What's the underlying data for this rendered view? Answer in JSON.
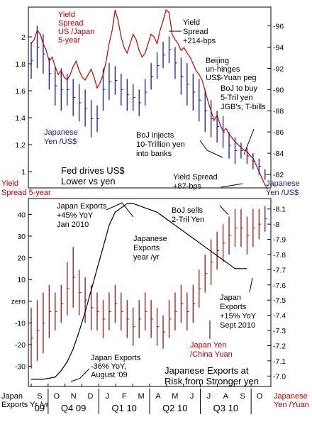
{
  "colors": {
    "spread": "#c00000",
    "yen_bars": "#1a1a8c",
    "yuan_bars": "#8b1a1a",
    "exports": "#000000"
  },
  "top": {
    "left_axis_title_1": "Yield",
    "left_axis_title_2": "Spread 5-year",
    "right_axis_title_1": "Japanese",
    "right_axis_title_2": "Yen /US$",
    "annotations": {
      "yield_spread_label": [
        "Yield",
        "Spread",
        "US /Japan",
        "5-year"
      ],
      "spread_214": [
        "Yield",
        "Spread",
        "+214-bps"
      ],
      "beijing": [
        "Beijing",
        "un-hinges",
        "US$-Yuan peg"
      ],
      "boj_buy": [
        "BoJ to buy",
        "5-Tril yen",
        "JGB's, T-bills"
      ],
      "japanese_yen": [
        "Japanese",
        "Yen /US$"
      ],
      "boj_injects": [
        "BoJ injects",
        "10-Trillion yen",
        "into banks"
      ],
      "fed_drives": [
        "Fed drives US$",
        "Lower vs yen"
      ],
      "spread_87": [
        "Yield Spread",
        "+87-bps"
      ]
    }
  },
  "bottom": {
    "left_axis_title_1": "Japan",
    "left_axis_title_2": "Exports Yr /yr",
    "right_axis_title_1": "Japanese",
    "right_axis_title_2": "Yen /Yuan",
    "annotations": {
      "exports_jan": [
        "Japan Exports",
        "+45% YoY",
        "Jan 2010"
      ],
      "boj_sells": [
        "BoJ sells",
        "2-Tril Yen"
      ],
      "exports_yr": [
        "Japanese",
        "Exports",
        "year /yr"
      ],
      "exports_sept": [
        "Japan",
        "Exports",
        "+15% YoY",
        "Sept 2010"
      ],
      "yen_yuan": [
        "Japan Yen",
        "/China Yuan"
      ],
      "exports_aug": [
        "Japan Exports",
        "-36% YoY,",
        "August '09"
      ],
      "risk": [
        "Japanese Exports at",
        "Risk from Stronger yen"
      ]
    }
  },
  "x_axis": {
    "months": [
      "S",
      "O",
      "N",
      "D",
      "J",
      "F",
      "M",
      "A",
      "M",
      "J",
      "J",
      "A",
      "S",
      "O"
    ],
    "quarters": [
      "09",
      "Q4 09",
      "Q1 10",
      "Q2 10",
      "Q3 10"
    ]
  },
  "chart_data": [
    {
      "type": "line",
      "panel": "top",
      "series": [
        {
          "name": "Yield Spread US /Japan 5-year",
          "axis": "left",
          "x": [
            0,
            1,
            2,
            3,
            4,
            5,
            6,
            7,
            8,
            9,
            10,
            11,
            12,
            13,
            14,
            15,
            16,
            17,
            18,
            19,
            20,
            21,
            22,
            23,
            24,
            25,
            26,
            27,
            28,
            29,
            30,
            31,
            32,
            33,
            34,
            35,
            36,
            37,
            38,
            39,
            40,
            41,
            42,
            43,
            44,
            45,
            46,
            47,
            48,
            49,
            50,
            51,
            52,
            53,
            54,
            55,
            56,
            57,
            58,
            59,
            60,
            61,
            62,
            63,
            64,
            65,
            66,
            67,
            68,
            69,
            70,
            71,
            72,
            73,
            74,
            75,
            76,
            77,
            78,
            79
          ],
          "values": [
            1.95,
            1.98,
            2.05,
            2.02,
            1.95,
            1.9,
            1.82,
            1.85,
            1.78,
            1.72,
            1.75,
            1.7,
            1.68,
            1.72,
            1.78,
            1.82,
            1.75,
            1.7,
            1.68,
            1.72,
            1.76,
            1.7,
            1.62,
            1.66,
            1.72,
            1.82,
            1.95,
            2.05,
            2.2,
            2.12,
            2.0,
            1.92,
            1.88,
            1.95,
            2.02,
            1.98,
            1.9,
            1.85,
            1.88,
            1.95,
            2.02,
            2.0,
            1.95,
            2.05,
            2.12,
            2.2,
            2.18,
            2.02,
            1.98,
            1.95,
            1.9,
            1.92,
            1.88,
            1.85,
            1.8,
            1.75,
            1.72,
            1.68,
            1.6,
            1.52,
            1.45,
            1.38,
            1.42,
            1.35,
            1.3,
            1.32,
            1.28,
            1.25,
            1.22,
            1.2,
            1.18,
            1.16,
            1.15,
            1.12,
            1.1,
            1.05,
            1.0,
            0.95,
            0.9,
            0.87
          ],
          "color": "#c00000"
        }
      ],
      "ylim_left": [
        0.9,
        2.2
      ],
      "yticks_left": [
        1,
        1.2,
        1.4,
        1.6,
        1.8,
        2
      ],
      "ylim_right": [
        81,
        97.5
      ],
      "yticks_right": [
        82,
        84,
        86,
        88,
        90,
        92,
        94,
        96
      ]
    },
    {
      "type": "ohlc",
      "panel": "top",
      "name": "Japanese Yen /US$",
      "axis": "right",
      "x": [
        0,
        2,
        4,
        6,
        8,
        10,
        12,
        14,
        16,
        18,
        20,
        22,
        24,
        26,
        28,
        30,
        32,
        34,
        36,
        38,
        40,
        42,
        44,
        46,
        48,
        50,
        52,
        54,
        56,
        58,
        60,
        62,
        64,
        66,
        68,
        70,
        72,
        74,
        76,
        78
      ],
      "high": [
        94.5,
        96.0,
        95.2,
        93.0,
        92.2,
        92.0,
        91.5,
        91.0,
        90.5,
        90.0,
        89.0,
        88.5,
        92.0,
        92.5,
        92.2,
        91.5,
        91.0,
        90.5,
        90.0,
        91.0,
        92.5,
        93.5,
        94.5,
        95.0,
        94.0,
        93.0,
        92.5,
        91.5,
        91.0,
        90.0,
        89.0,
        88.0,
        87.5,
        86.0,
        85.5,
        85.0,
        84.5,
        84.0,
        83.5,
        82.5
      ],
      "low": [
        91.0,
        92.0,
        91.5,
        90.0,
        88.5,
        88.0,
        88.5,
        87.5,
        87.0,
        86.5,
        85.5,
        86.0,
        88.0,
        89.0,
        89.5,
        88.5,
        88.0,
        88.0,
        87.5,
        88.5,
        90.0,
        91.0,
        92.0,
        92.5,
        91.0,
        89.5,
        88.5,
        88.0,
        87.0,
        86.0,
        85.5,
        85.0,
        84.5,
        83.5,
        83.0,
        83.5,
        83.0,
        82.5,
        82.0,
        81.5
      ],
      "color": "#1a1a8c"
    },
    {
      "type": "line",
      "panel": "bottom",
      "series": [
        {
          "name": "Japanese Exports year /yr",
          "axis": "left",
          "x": [
            0,
            4,
            8,
            10,
            12,
            14,
            16,
            18,
            20,
            22,
            24,
            26,
            28,
            30,
            32,
            34,
            36,
            38,
            40,
            42,
            44,
            46,
            48,
            50,
            52,
            54,
            56,
            58,
            60,
            62,
            64,
            66,
            68,
            70,
            72
          ],
          "values": [
            -36,
            -36,
            -35,
            -32,
            -28,
            -22,
            -14,
            -5,
            5,
            15,
            25,
            35,
            41,
            43,
            45,
            45,
            44,
            43,
            42,
            41,
            39,
            37,
            35,
            33,
            31,
            29,
            27,
            25,
            23,
            21,
            19,
            17,
            15,
            15,
            15
          ],
          "color": "#000000"
        }
      ],
      "ylim_left": [
        -38,
        46
      ],
      "yticks_left": [
        -30,
        -20,
        -10,
        0,
        10,
        20,
        30,
        40
      ],
      "ytick_labels_left": [
        "-30",
        "-20",
        "-10",
        "zero",
        "10",
        "20",
        "30",
        "40"
      ],
      "ylim_right": [
        6.95,
        8.15
      ],
      "yticks_right": [
        7.0,
        7.1,
        7.2,
        7.3,
        7.4,
        7.5,
        7.6,
        7.7,
        7.8,
        7.9,
        8.0,
        8.1
      ],
      "ytick_labels_right": [
        "-7.0",
        "-7.1",
        "-7.2",
        "-7.3",
        "-7.4",
        "-7.5",
        "-7.6",
        "-7.7",
        "-7.8",
        "-7.9",
        "-8",
        "-8.1"
      ]
    },
    {
      "type": "ohlc",
      "panel": "bottom",
      "name": "Japan Yen /China Yuan",
      "axis": "right",
      "x": [
        0,
        2,
        4,
        6,
        8,
        10,
        12,
        14,
        16,
        18,
        20,
        22,
        24,
        26,
        28,
        30,
        32,
        34,
        36,
        38,
        40,
        42,
        44,
        46,
        48,
        50,
        52,
        54,
        56,
        58,
        60,
        62,
        64,
        66,
        68,
        70,
        72,
        74,
        76,
        78
      ],
      "high": [
        7.45,
        7.5,
        7.55,
        7.6,
        7.55,
        7.6,
        7.75,
        7.85,
        7.7,
        7.65,
        7.6,
        7.55,
        7.5,
        7.55,
        7.6,
        7.55,
        7.5,
        7.45,
        7.5,
        7.55,
        7.5,
        7.45,
        7.4,
        7.5,
        7.55,
        7.6,
        7.55,
        7.6,
        7.7,
        7.8,
        7.9,
        7.95,
        8.0,
        8.05,
        8.1,
        8.1,
        8.05,
        8.1,
        8.1,
        8.12
      ],
      "low": [
        7.05,
        7.1,
        7.15,
        7.25,
        7.3,
        7.35,
        7.4,
        7.45,
        7.4,
        7.35,
        7.3,
        7.3,
        7.25,
        7.3,
        7.35,
        7.3,
        7.25,
        7.2,
        7.25,
        7.3,
        7.25,
        7.2,
        7.18,
        7.25,
        7.3,
        7.35,
        7.3,
        7.35,
        7.45,
        7.55,
        7.6,
        7.7,
        7.75,
        7.8,
        7.85,
        7.85,
        7.8,
        7.85,
        7.9,
        7.95
      ],
      "color": "#8b1a1a"
    }
  ]
}
